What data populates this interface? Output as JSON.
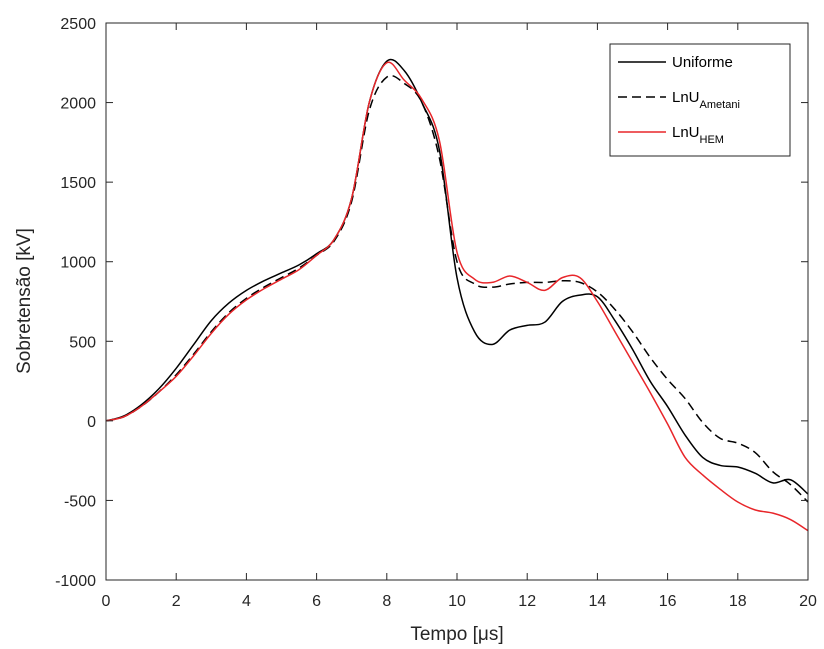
{
  "chart_data": {
    "type": "line",
    "xlabel": "Tempo [μs]",
    "ylabel": "Sobretensão [kV]",
    "xlim": [
      0,
      20
    ],
    "ylim": [
      -1000,
      2500
    ],
    "xticks": [
      0,
      2,
      4,
      6,
      8,
      10,
      12,
      14,
      16,
      18,
      20
    ],
    "yticks": [
      -1000,
      -500,
      0,
      500,
      1000,
      1500,
      2000,
      2500
    ],
    "xtick_labels": [
      "0",
      "2",
      "4",
      "6",
      "8",
      "10",
      "12",
      "14",
      "16",
      "18",
      "20"
    ],
    "ytick_labels": [
      "-1000",
      "-500",
      "0",
      "500",
      "1000",
      "1500",
      "2000",
      "2500"
    ],
    "grid": false,
    "legend_position": "top-right",
    "series": [
      {
        "name": "Uniforme",
        "legend_main": "Uniforme",
        "legend_sub": "",
        "color": "#000000",
        "dash": "solid",
        "x": [
          0,
          0.5,
          1,
          1.5,
          2,
          2.5,
          3,
          3.5,
          4,
          4.5,
          5,
          5.5,
          6,
          6.5,
          7,
          7.5,
          8,
          8.5,
          9,
          9.5,
          10,
          10.5,
          11,
          11.5,
          12,
          12.5,
          13,
          13.5,
          14,
          14.5,
          15,
          15.5,
          16,
          16.5,
          17,
          17.5,
          18,
          18.5,
          19,
          19.5,
          20
        ],
        "y": [
          0,
          30,
          100,
          200,
          330,
          480,
          630,
          740,
          820,
          880,
          930,
          980,
          1050,
          1140,
          1400,
          2000,
          2260,
          2200,
          2000,
          1700,
          900,
          560,
          480,
          570,
          600,
          620,
          750,
          790,
          780,
          630,
          450,
          250,
          90,
          -90,
          -230,
          -280,
          -290,
          -330,
          -390,
          -370,
          -460
        ]
      },
      {
        "name": "LnU_Ametani",
        "legend_main": "LnU",
        "legend_sub": "Ametani",
        "color": "#000000",
        "dash": "dashed",
        "x": [
          0,
          0.5,
          1,
          1.5,
          2,
          2.5,
          3,
          3.5,
          4,
          4.5,
          5,
          5.5,
          6,
          6.5,
          7,
          7.5,
          8,
          8.5,
          9,
          9.5,
          10,
          10.5,
          11,
          11.5,
          12,
          12.5,
          13,
          13.5,
          14,
          14.5,
          15,
          15.5,
          16,
          16.5,
          17,
          17.5,
          18,
          18.5,
          19,
          19.5,
          20
        ],
        "y": [
          0,
          25,
          90,
          180,
          290,
          420,
          560,
          680,
          770,
          840,
          900,
          960,
          1040,
          1130,
          1380,
          1950,
          2160,
          2120,
          2000,
          1650,
          1000,
          860,
          840,
          860,
          870,
          870,
          880,
          870,
          810,
          700,
          560,
          400,
          260,
          140,
          -10,
          -110,
          -140,
          -200,
          -320,
          -400,
          -510
        ]
      },
      {
        "name": "LnU_HEM",
        "legend_main": "LnU",
        "legend_sub": "HEM",
        "color": "#e8262a",
        "dash": "solid",
        "x": [
          0,
          0.5,
          1,
          1.5,
          2,
          2.5,
          3,
          3.5,
          4,
          4.5,
          5,
          5.5,
          6,
          6.5,
          7,
          7.5,
          8,
          8.5,
          9,
          9.5,
          10,
          10.5,
          11,
          11.5,
          12,
          12.5,
          13,
          13.5,
          14,
          14.5,
          15,
          15.5,
          16,
          16.5,
          17,
          17.5,
          18,
          18.5,
          19,
          19.5,
          20
        ],
        "y": [
          0,
          25,
          90,
          180,
          280,
          410,
          550,
          670,
          760,
          830,
          890,
          950,
          1040,
          1140,
          1400,
          2000,
          2250,
          2140,
          2020,
          1760,
          1060,
          890,
          870,
          910,
          870,
          820,
          900,
          900,
          750,
          560,
          370,
          180,
          -20,
          -230,
          -340,
          -430,
          -510,
          -560,
          -580,
          -620,
          -690
        ]
      }
    ]
  }
}
